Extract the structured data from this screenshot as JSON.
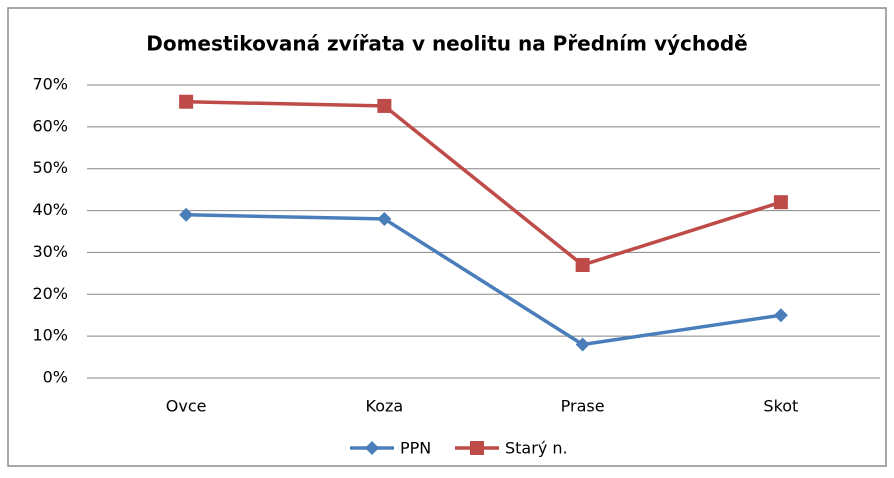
{
  "chart_data": {
    "type": "line",
    "title": "Domestikovaná zvířata v neolitu na Předním východě",
    "categories": [
      "Ovce",
      "Koza",
      "Prase",
      "Skot"
    ],
    "series": [
      {
        "name": "PPN",
        "color": "#4a7ebb",
        "marker": "diamond",
        "values": [
          39,
          38,
          8,
          15
        ]
      },
      {
        "name": "Starý n.",
        "color": "#be4b48",
        "marker": "square",
        "values": [
          66,
          65,
          27,
          42
        ]
      }
    ],
    "ylim": [
      0,
      70
    ],
    "yticks": [
      {
        "value": 0,
        "label": "0%"
      },
      {
        "value": 10,
        "label": "10%"
      },
      {
        "value": 20,
        "label": "20%"
      },
      {
        "value": 30,
        "label": "30%"
      },
      {
        "value": 40,
        "label": "40%"
      },
      {
        "value": 50,
        "label": "50%"
      },
      {
        "value": 60,
        "label": "60%"
      },
      {
        "value": 70,
        "label": "70%"
      }
    ],
    "grid": true,
    "legend": "bottom"
  }
}
